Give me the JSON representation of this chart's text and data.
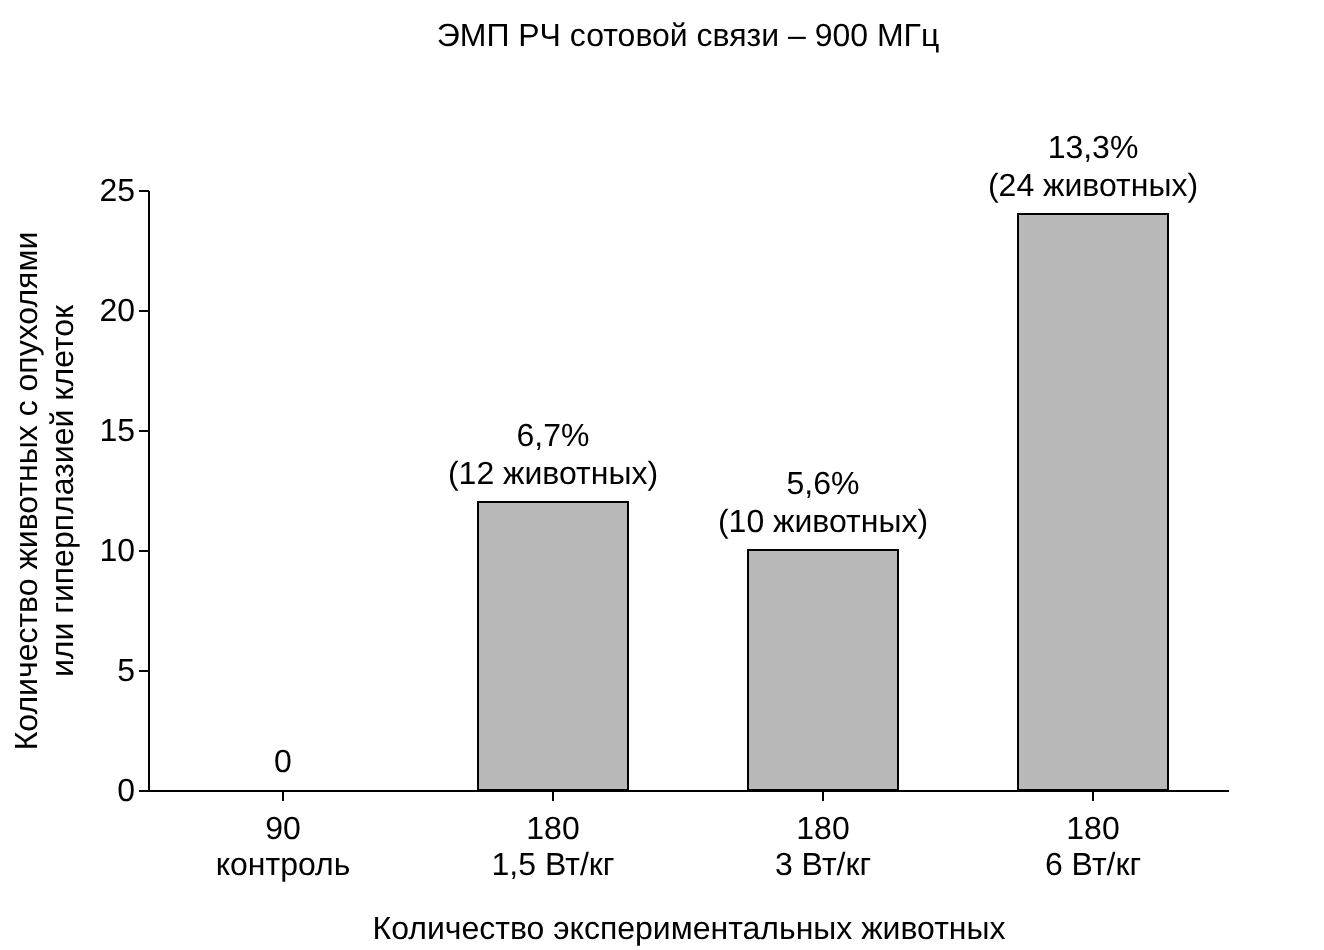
{
  "chart_data": {
    "type": "bar",
    "title": "ЭМП РЧ сотовой связи – 900 МГц",
    "xlabel": "Количество экспериментальных животных",
    "ylabel": "Количество животных с опухолями\nили гиперплазией клеток",
    "categories": [
      "90\nконтроль",
      "180\n1,5 Вт/кг",
      "180\n3 Вт/кг",
      "180\n6 Вт/кг"
    ],
    "values": [
      0,
      12,
      10,
      24
    ],
    "value_labels": [
      "0",
      "6,7%\n(12 животных)",
      "5,6%\n(10 животных)",
      "13,3%\n(24 животных)"
    ],
    "color": "#b8b8b8",
    "ylim": [
      0,
      25
    ],
    "yticks": [
      0,
      5,
      10,
      15,
      20,
      25
    ]
  }
}
